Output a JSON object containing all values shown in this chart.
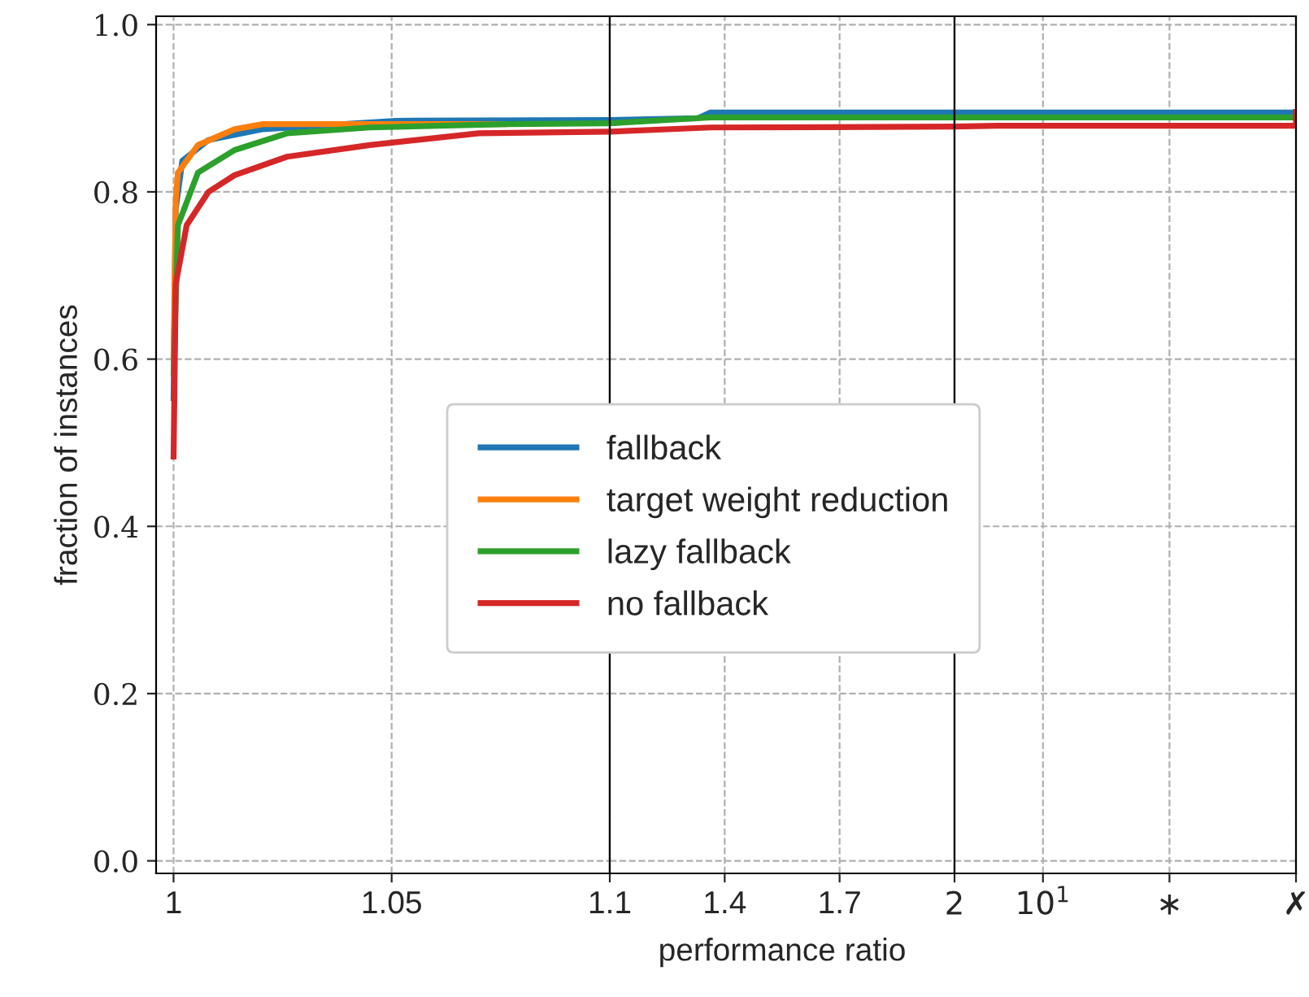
{
  "chart_data": [
    {
      "type": "line",
      "ylabel": "fraction of instances",
      "xlim": [
        0.996,
        1.1
      ],
      "ylim": [
        -0.015,
        1.01
      ],
      "xticks": [
        1,
        1.05,
        1.1
      ],
      "yticks": [
        {
          "value": 0,
          "label": "0.0"
        },
        {
          "value": 0.2,
          "label": "0.2"
        },
        {
          "value": 0.4,
          "label": "0.4"
        },
        {
          "value": 0.6,
          "label": "0.6"
        },
        {
          "value": 0.8,
          "label": "0.8"
        },
        {
          "value": 1,
          "label": "1.0"
        }
      ],
      "grid": true,
      "legend": "center",
      "line_style": "solid",
      "series": [
        {
          "name": "fallback",
          "color": "#1f77b4",
          "x": [
            1,
            1.0005,
            1.002,
            1.008,
            1.0205,
            1.051,
            1.1
          ],
          "values": [
            0.55,
            0.78,
            0.837,
            0.862,
            0.875,
            0.885,
            0.886
          ]
        },
        {
          "name": "target weight reduction",
          "color": "#ff7f0e",
          "x": [
            1,
            1.0005,
            1.001,
            1.0056,
            1.014,
            1.0205,
            1.0765
          ],
          "values": [
            0.6,
            0.79,
            0.823,
            0.856,
            0.875,
            0.881,
            0.881
          ]
        },
        {
          "name": "lazy fallback",
          "color": "#2ca02c",
          "x": [
            1,
            1.001,
            1.0056,
            1.014,
            1.026,
            1.045,
            1.0765,
            1.1
          ],
          "values": [
            0.58,
            0.76,
            0.823,
            0.85,
            0.87,
            0.877,
            0.881,
            0.882
          ]
        },
        {
          "name": "no fallback",
          "color": "#d62728",
          "x": [
            1,
            1.0005,
            1.003,
            1.008,
            1.014,
            1.026,
            1.045,
            1.07,
            1.1
          ],
          "values": [
            0.48,
            0.69,
            0.76,
            0.8,
            0.82,
            0.842,
            0.856,
            0.87,
            0.872
          ]
        }
      ]
    },
    {
      "type": "line",
      "xlabel": "performance ratio",
      "xlim": [
        1.1,
        2
      ],
      "ylim": [
        -0.015,
        1.01
      ],
      "xticks": [
        1.4,
        1.7
      ],
      "yticks": [
        0,
        0.2,
        0.4,
        0.6,
        0.8,
        1
      ],
      "grid": true,
      "tick_labels": "x",
      "line_style": "solid",
      "series": [
        {
          "color": "#1f77b4",
          "x": [
            1.1,
            1.33,
            1.363,
            2
          ],
          "values": [
            0.886,
            0.888,
            0.895,
            0.895
          ]
        },
        {
          "color": "#2ca02c",
          "x": [
            1.1,
            1.363,
            2
          ],
          "values": [
            0.882,
            0.889,
            0.889
          ]
        },
        {
          "color": "#d62728",
          "x": [
            1.1,
            1.363,
            2
          ],
          "values": [
            0.872,
            0.877,
            0.878
          ]
        }
      ]
    },
    {
      "type": "line",
      "xlim": [
        2,
        1000
      ],
      "ylim": [
        -0.015,
        1.01
      ],
      "log": "x",
      "xticks": [
        2,
        {
          "value": 10,
          "label": "10$^{1}$"
        },
        {
          "value": 100,
          "label": "∗"
        },
        {
          "value": 1000,
          "label": "✗"
        }
      ],
      "yticks": [
        0,
        0.2,
        0.4,
        0.6,
        0.8,
        1
      ],
      "grid": true,
      "tick_labels": "x",
      "line_style": "solid",
      "series": [
        {
          "color": "#1f77b4",
          "x": [
            2,
            1000,
            1000
          ],
          "values": [
            0.895,
            0.895,
            0.899
          ]
        },
        {
          "color": "#2ca02c",
          "x": [
            2,
            1000,
            1000
          ],
          "values": [
            0.889,
            0.889,
            0.899
          ]
        },
        {
          "color": "#d62728",
          "x": [
            2,
            4.35,
            1000,
            1000
          ],
          "values": [
            0.878,
            0.879,
            0.879,
            0.899
          ]
        }
      ]
    }
  ]
}
